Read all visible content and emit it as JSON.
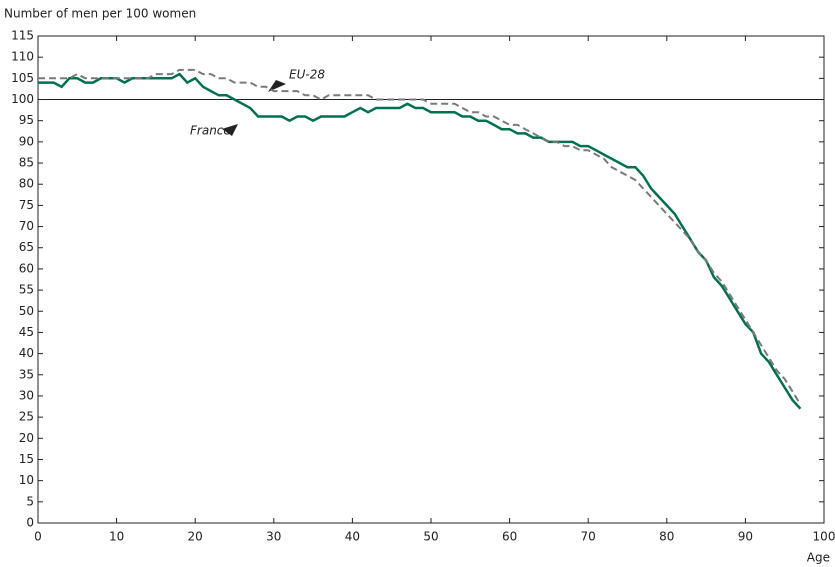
{
  "chart_data": {
    "type": "line",
    "ylabel": "Number of men per 100 women",
    "xlabel": "Age",
    "x": [
      0,
      1,
      2,
      3,
      4,
      5,
      6,
      7,
      8,
      9,
      10,
      11,
      12,
      13,
      14,
      15,
      16,
      17,
      18,
      19,
      20,
      21,
      22,
      23,
      24,
      25,
      26,
      27,
      28,
      29,
      30,
      31,
      32,
      33,
      34,
      35,
      36,
      37,
      38,
      39,
      40,
      41,
      42,
      43,
      44,
      45,
      46,
      47,
      48,
      49,
      50,
      51,
      52,
      53,
      54,
      55,
      56,
      57,
      58,
      59,
      60,
      61,
      62,
      63,
      64,
      65,
      66,
      67,
      68,
      69,
      70,
      71,
      72,
      73,
      74,
      75,
      76,
      77,
      78,
      79,
      80,
      81,
      82,
      83,
      84,
      85,
      86,
      87,
      88,
      89,
      90,
      91,
      92,
      93,
      94,
      95,
      96,
      97
    ],
    "series": [
      {
        "name": "France",
        "color": "#00704f",
        "dashed": false,
        "values": [
          104,
          104,
          104,
          103,
          105,
          105,
          104,
          104,
          105,
          105,
          105,
          104,
          105,
          105,
          105,
          105,
          105,
          105,
          106,
          104,
          105,
          103,
          102,
          101,
          101,
          100,
          99,
          98,
          96,
          96,
          96,
          96,
          95,
          96,
          96,
          95,
          96,
          96,
          96,
          96,
          97,
          98,
          97,
          98,
          98,
          98,
          98,
          99,
          98,
          98,
          97,
          97,
          97,
          97,
          96,
          96,
          95,
          95,
          94,
          93,
          93,
          92,
          92,
          91,
          91,
          90,
          90,
          90,
          90,
          89,
          89,
          88,
          87,
          86,
          85,
          84,
          84,
          82,
          79,
          77,
          75,
          73,
          70,
          67,
          64,
          62,
          58,
          56,
          53,
          50,
          47,
          45,
          40,
          38,
          35,
          32,
          29,
          27
        ]
      },
      {
        "name": "EU-28",
        "color": "#7a7a7a",
        "dashed": true,
        "values": [
          105,
          105,
          105,
          105,
          105,
          106,
          105,
          105,
          105,
          105,
          105,
          105,
          105,
          105,
          105,
          106,
          106,
          106,
          107,
          107,
          107,
          106,
          106,
          105,
          105,
          104,
          104,
          104,
          103,
          103,
          102,
          102,
          102,
          102,
          101,
          101,
          100,
          101,
          101,
          101,
          101,
          101,
          101,
          100,
          100,
          100,
          100,
          100,
          100,
          100,
          99,
          99,
          99,
          99,
          98,
          97,
          97,
          96,
          96,
          95,
          94,
          94,
          93,
          92,
          91,
          90,
          90,
          89,
          89,
          88,
          88,
          87,
          86,
          84,
          83,
          82,
          81,
          79,
          77,
          75,
          73,
          71,
          69,
          67,
          64,
          62,
          59,
          57,
          54,
          51,
          48,
          45,
          42,
          39,
          36,
          34,
          31,
          28
        ]
      }
    ],
    "reference_line": 100,
    "xlim": [
      0,
      100
    ],
    "xticks": [
      0,
      10,
      20,
      30,
      40,
      50,
      60,
      70,
      80,
      90,
      100
    ],
    "ylim": [
      0,
      115
    ],
    "yticks": [
      0,
      5,
      10,
      15,
      20,
      25,
      30,
      35,
      40,
      45,
      50,
      55,
      60,
      65,
      70,
      75,
      80,
      85,
      90,
      95,
      100,
      105,
      110,
      115
    ],
    "grid": false
  }
}
